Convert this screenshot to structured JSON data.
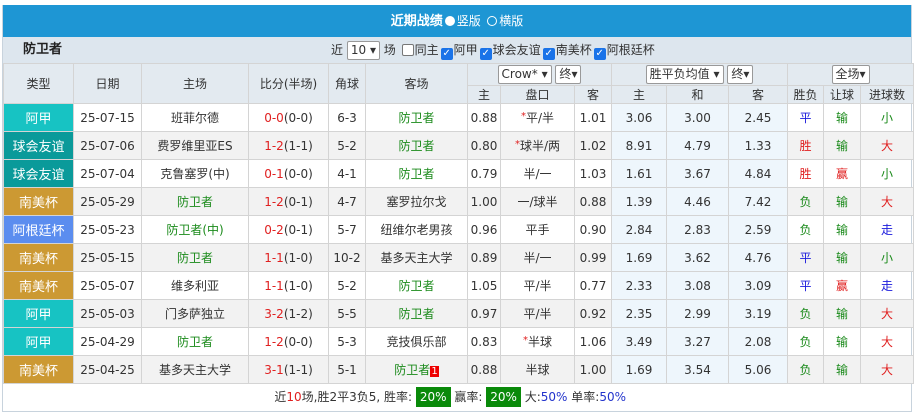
{
  "header": {
    "title": "近期战绩",
    "opt_vertical": "竖版",
    "opt_horizontal": "横版"
  },
  "filter": {
    "team": "防卫者",
    "near": "近",
    "count": "10",
    "unit": "场",
    "same_home": "同主",
    "leagues": [
      "阿甲",
      "球会友谊",
      "南美杯",
      "阿根廷杯"
    ]
  },
  "columns": {
    "type": "类型",
    "date": "日期",
    "home": "主场",
    "score": "比分(半场)",
    "corner": "角球",
    "away": "客场",
    "company": "Crow*",
    "final1": "终",
    "avg": "胜平负均值",
    "final2": "终",
    "scope": "全场",
    "h": "主",
    "line": "盘口",
    "a": "客",
    "h2": "主",
    "d": "和",
    "a2": "客",
    "wl": "胜负",
    "hcp": "让球",
    "ou": "进球数"
  },
  "colors": {
    "阿甲": "#17c3c3",
    "球会友谊": "#0a9a9a",
    "南美杯": "#cc9933",
    "阿根廷杯": "#5b8def"
  },
  "rows": [
    {
      "league": "阿甲",
      "date": "25-07-15",
      "home": "班菲尔德",
      "home_team": false,
      "ft": "0-0",
      "ht": "(0-0)",
      "corner": "6-3",
      "away": "防卫者",
      "away_team": true,
      "oh": "0.88",
      "star": true,
      "line": "平/半",
      "oa": "1.01",
      "w": "3.06",
      "d": "3.00",
      "l": "2.45",
      "res": "平",
      "hcp": "输",
      "ou": "小"
    },
    {
      "league": "球会友谊",
      "date": "25-07-06",
      "home": "费罗维里亚ES",
      "home_team": false,
      "ft": "1-2",
      "ht": "(1-1)",
      "corner": "5-2",
      "away": "防卫者",
      "away_team": true,
      "oh": "0.80",
      "star": true,
      "line": "球半/两",
      "oa": "1.02",
      "w": "8.91",
      "d": "4.79",
      "l": "1.33",
      "res": "胜",
      "hcp": "输",
      "ou": "大"
    },
    {
      "league": "球会友谊",
      "date": "25-07-04",
      "home": "克鲁塞罗(中)",
      "home_team": false,
      "ft": "0-1",
      "ht": "(0-0)",
      "corner": "4-1",
      "away": "防卫者",
      "away_team": true,
      "oh": "0.79",
      "star": false,
      "line": "半/一",
      "oa": "1.03",
      "w": "1.61",
      "d": "3.67",
      "l": "4.84",
      "res": "胜",
      "hcp": "赢",
      "ou": "小"
    },
    {
      "league": "南美杯",
      "date": "25-05-29",
      "home": "防卫者",
      "home_team": true,
      "ft": "1-2",
      "ht": "(0-1)",
      "corner": "4-7",
      "away": "塞罗拉尔戈",
      "away_team": false,
      "oh": "1.00",
      "star": false,
      "line": "一/球半",
      "oa": "0.88",
      "w": "1.39",
      "d": "4.46",
      "l": "7.42",
      "res": "负",
      "hcp": "输",
      "ou": "大"
    },
    {
      "league": "阿根廷杯",
      "date": "25-05-23",
      "home": "防卫者(中)",
      "home_team": true,
      "ft": "0-2",
      "ht": "(0-1)",
      "corner": "5-7",
      "away": "纽维尔老男孩",
      "away_team": false,
      "oh": "0.96",
      "star": false,
      "line": "平手",
      "oa": "0.90",
      "w": "2.84",
      "d": "2.83",
      "l": "2.59",
      "res": "负",
      "hcp": "输",
      "ou": "走"
    },
    {
      "league": "南美杯",
      "date": "25-05-15",
      "home": "防卫者",
      "home_team": true,
      "ft": "1-1",
      "ht": "(1-0)",
      "corner": "10-2",
      "away": "基多天主大学",
      "away_team": false,
      "oh": "0.89",
      "star": false,
      "line": "半/一",
      "oa": "0.99",
      "w": "1.69",
      "d": "3.62",
      "l": "4.76",
      "res": "平",
      "hcp": "输",
      "ou": "小"
    },
    {
      "league": "南美杯",
      "date": "25-05-07",
      "home": "维多利亚",
      "home_team": false,
      "ft": "1-1",
      "ht": "(1-0)",
      "corner": "5-2",
      "away": "防卫者",
      "away_team": true,
      "oh": "1.05",
      "star": false,
      "line": "平/半",
      "oa": "0.77",
      "w": "2.33",
      "d": "3.08",
      "l": "3.09",
      "res": "平",
      "hcp": "赢",
      "ou": "走"
    },
    {
      "league": "阿甲",
      "date": "25-05-03",
      "home": "门多萨独立",
      "home_team": false,
      "ft": "3-2",
      "ht": "(1-2)",
      "corner": "5-5",
      "away": "防卫者",
      "away_team": true,
      "oh": "0.97",
      "star": false,
      "line": "平/半",
      "oa": "0.92",
      "w": "2.35",
      "d": "2.99",
      "l": "3.19",
      "res": "负",
      "hcp": "输",
      "ou": "大"
    },
    {
      "league": "阿甲",
      "date": "25-04-29",
      "home": "防卫者",
      "home_team": true,
      "ft": "1-2",
      "ht": "(0-0)",
      "corner": "5-3",
      "away": "竞技俱乐部",
      "away_team": false,
      "oh": "0.83",
      "star": true,
      "line": "半球",
      "oa": "1.06",
      "w": "3.49",
      "d": "3.27",
      "l": "2.08",
      "res": "负",
      "hcp": "输",
      "ou": "大"
    },
    {
      "league": "南美杯",
      "date": "25-04-25",
      "home": "基多天主大学",
      "home_team": false,
      "ft": "3-1",
      "ht": "(1-1)",
      "corner": "5-1",
      "away": "防卫者",
      "away_team": true,
      "away_badge": "1",
      "oh": "0.88",
      "star": false,
      "line": "半球",
      "oa": "1.00",
      "w": "1.69",
      "d": "3.54",
      "l": "5.06",
      "res": "负",
      "hcp": "输",
      "ou": "大"
    }
  ],
  "footer": {
    "p1": "近",
    "n": "10",
    "p2": "场,胜2平3负5, 胜率:",
    "win_rate": "20%",
    "p3": "赢率:",
    "hcp_rate": "20%",
    "p4": "大:",
    "big_rate": "50%",
    "p5": "单率:",
    "odd_rate": "50%"
  }
}
